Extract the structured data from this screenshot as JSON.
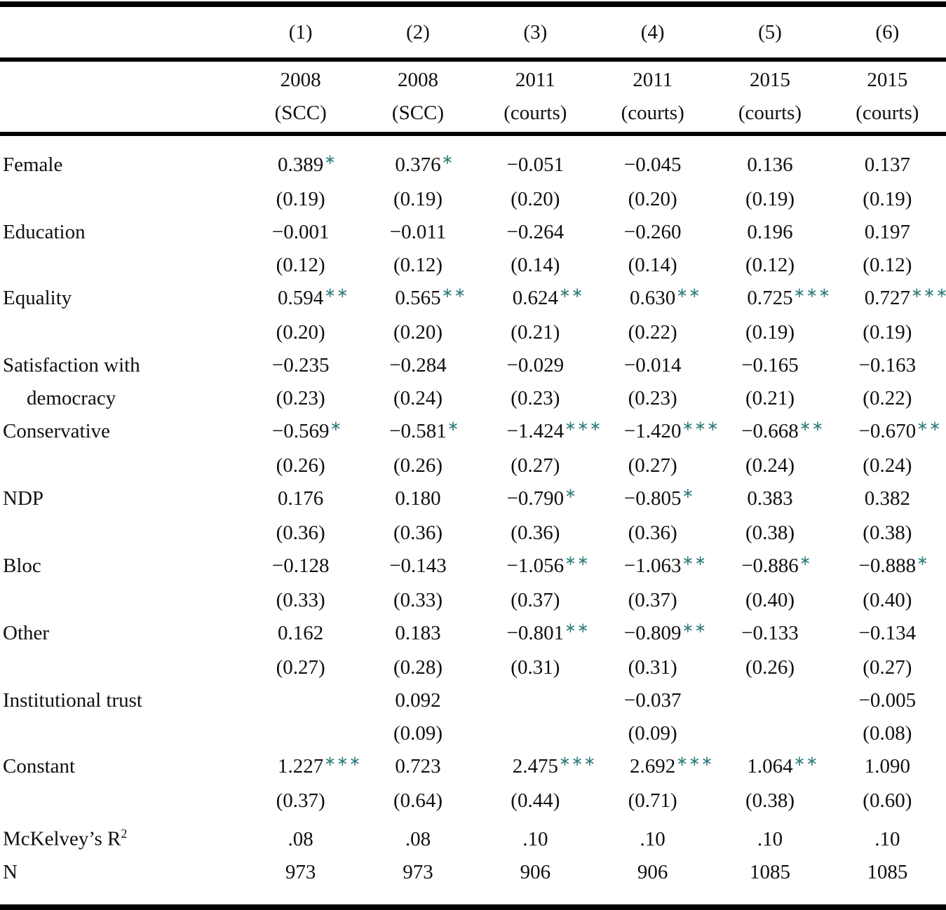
{
  "colors": {
    "star": "#337f7e",
    "text": "#101010",
    "rule": "#000000"
  },
  "table": {
    "column_numbers": [
      "(1)",
      "(2)",
      "(3)",
      "(4)",
      "(5)",
      "(6)"
    ],
    "column_headers": [
      {
        "year": "2008",
        "label": "(SCC)"
      },
      {
        "year": "2008",
        "label": "(SCC)"
      },
      {
        "year": "2011",
        "label": "(courts)"
      },
      {
        "year": "2011",
        "label": "(courts)"
      },
      {
        "year": "2015",
        "label": "(courts)"
      },
      {
        "year": "2015",
        "label": "(courts)"
      }
    ],
    "rows": [
      {
        "label": "Female",
        "label2": "",
        "cells": [
          {
            "coef": "0.389",
            "sig": "∗",
            "se": "(0.19)"
          },
          {
            "coef": "0.376",
            "sig": "∗",
            "se": "(0.19)"
          },
          {
            "coef": "−0.051",
            "sig": "",
            "se": "(0.20)"
          },
          {
            "coef": "−0.045",
            "sig": "",
            "se": "(0.20)"
          },
          {
            "coef": "0.136",
            "sig": "",
            "se": "(0.19)"
          },
          {
            "coef": "0.137",
            "sig": "",
            "se": "(0.19)"
          }
        ]
      },
      {
        "label": "Education",
        "label2": "",
        "cells": [
          {
            "coef": "−0.001",
            "sig": "",
            "se": "(0.12)"
          },
          {
            "coef": "−0.011",
            "sig": "",
            "se": "(0.12)"
          },
          {
            "coef": "−0.264",
            "sig": "",
            "se": "(0.14)"
          },
          {
            "coef": "−0.260",
            "sig": "",
            "se": "(0.14)"
          },
          {
            "coef": "0.196",
            "sig": "",
            "se": "(0.12)"
          },
          {
            "coef": "0.197",
            "sig": "",
            "se": "(0.12)"
          }
        ]
      },
      {
        "label": "Equality",
        "label2": "",
        "cells": [
          {
            "coef": "0.594",
            "sig": "∗∗",
            "se": "(0.20)"
          },
          {
            "coef": "0.565",
            "sig": "∗∗",
            "se": "(0.20)"
          },
          {
            "coef": "0.624",
            "sig": "∗∗",
            "se": "(0.21)"
          },
          {
            "coef": "0.630",
            "sig": "∗∗",
            "se": "(0.22)"
          },
          {
            "coef": "0.725",
            "sig": "∗∗∗",
            "se": "(0.19)"
          },
          {
            "coef": "0.727",
            "sig": "∗∗∗",
            "se": "(0.19)"
          }
        ]
      },
      {
        "label": "Satisfaction with",
        "label2": "democracy",
        "cells": [
          {
            "coef": "−0.235",
            "sig": "",
            "se": "(0.23)"
          },
          {
            "coef": "−0.284",
            "sig": "",
            "se": "(0.24)"
          },
          {
            "coef": "−0.029",
            "sig": "",
            "se": "(0.23)"
          },
          {
            "coef": "−0.014",
            "sig": "",
            "se": "(0.23)"
          },
          {
            "coef": "−0.165",
            "sig": "",
            "se": "(0.21)"
          },
          {
            "coef": "−0.163",
            "sig": "",
            "se": "(0.22)"
          }
        ]
      },
      {
        "label": "Conservative",
        "label2": "",
        "cells": [
          {
            "coef": "−0.569",
            "sig": "∗",
            "se": "(0.26)"
          },
          {
            "coef": "−0.581",
            "sig": "∗",
            "se": "(0.26)"
          },
          {
            "coef": "−1.424",
            "sig": "∗∗∗",
            "se": "(0.27)"
          },
          {
            "coef": "−1.420",
            "sig": "∗∗∗",
            "se": "(0.27)"
          },
          {
            "coef": "−0.668",
            "sig": "∗∗",
            "se": "(0.24)"
          },
          {
            "coef": "−0.670",
            "sig": "∗∗",
            "se": "(0.24)"
          }
        ]
      },
      {
        "label": "NDP",
        "label2": "",
        "cells": [
          {
            "coef": "0.176",
            "sig": "",
            "se": "(0.36)"
          },
          {
            "coef": "0.180",
            "sig": "",
            "se": "(0.36)"
          },
          {
            "coef": "−0.790",
            "sig": "∗",
            "se": "(0.36)"
          },
          {
            "coef": "−0.805",
            "sig": "∗",
            "se": "(0.36)"
          },
          {
            "coef": "0.383",
            "sig": "",
            "se": "(0.38)"
          },
          {
            "coef": "0.382",
            "sig": "",
            "se": "(0.38)"
          }
        ]
      },
      {
        "label": "Bloc",
        "label2": "",
        "cells": [
          {
            "coef": "−0.128",
            "sig": "",
            "se": "(0.33)"
          },
          {
            "coef": "−0.143",
            "sig": "",
            "se": "(0.33)"
          },
          {
            "coef": "−1.056",
            "sig": "∗∗",
            "se": "(0.37)"
          },
          {
            "coef": "−1.063",
            "sig": "∗∗",
            "se": "(0.37)"
          },
          {
            "coef": "−0.886",
            "sig": "∗",
            "se": "(0.40)"
          },
          {
            "coef": "−0.888",
            "sig": "∗",
            "se": "(0.40)"
          }
        ]
      },
      {
        "label": "Other",
        "label2": "",
        "cells": [
          {
            "coef": "0.162",
            "sig": "",
            "se": "(0.27)"
          },
          {
            "coef": "0.183",
            "sig": "",
            "se": "(0.28)"
          },
          {
            "coef": "−0.801",
            "sig": "∗∗",
            "se": "(0.31)"
          },
          {
            "coef": "−0.809",
            "sig": "∗∗",
            "se": "(0.31)"
          },
          {
            "coef": "−0.133",
            "sig": "",
            "se": "(0.26)"
          },
          {
            "coef": "−0.134",
            "sig": "",
            "se": "(0.27)"
          }
        ]
      },
      {
        "label": "Institutional trust",
        "label2": "",
        "cells": [
          null,
          {
            "coef": "0.092",
            "sig": "",
            "se": "(0.09)"
          },
          null,
          {
            "coef": "−0.037",
            "sig": "",
            "se": "(0.09)"
          },
          null,
          {
            "coef": "−0.005",
            "sig": "",
            "se": "(0.08)"
          }
        ]
      },
      {
        "label": "Constant",
        "label2": "",
        "cells": [
          {
            "coef": "1.227",
            "sig": "∗∗∗",
            "se": "(0.37)"
          },
          {
            "coef": "0.723",
            "sig": "",
            "se": "(0.64)"
          },
          {
            "coef": "2.475",
            "sig": "∗∗∗",
            "se": "(0.44)"
          },
          {
            "coef": "2.692",
            "sig": "∗∗∗",
            "se": "(0.71)"
          },
          {
            "coef": "1.064",
            "sig": "∗∗",
            "se": "(0.38)"
          },
          {
            "coef": "1.090",
            "sig": "",
            "se": "(0.60)"
          }
        ]
      }
    ],
    "stat_rows": [
      {
        "label": "McKelvey’s R",
        "sup": "2",
        "values": [
          ".08",
          ".08",
          ".10",
          ".10",
          ".10",
          ".10"
        ]
      },
      {
        "label": "N",
        "sup": "",
        "values": [
          "973",
          "973",
          "906",
          "906",
          "1085",
          "1085"
        ]
      }
    ]
  }
}
